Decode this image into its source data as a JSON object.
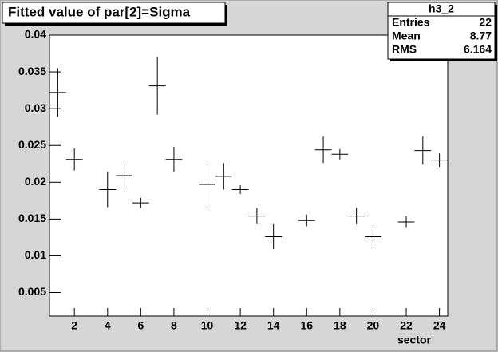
{
  "chart_data": {
    "type": "errorbar",
    "title": "Fitted value of par[2]=Sigma",
    "x_label": "sector",
    "x": [
      1,
      2,
      3,
      4,
      5,
      6,
      7,
      8,
      9,
      10,
      11,
      12,
      13,
      14,
      15,
      16,
      17,
      18,
      19,
      20,
      21,
      22,
      23,
      24
    ],
    "values": [
      0.0322,
      0.0231,
      null,
      0.019,
      0.0209,
      0.0172,
      0.0331,
      0.0231,
      null,
      0.0197,
      0.0208,
      0.019,
      0.0154,
      0.0126,
      null,
      0.0148,
      0.0244,
      0.0238,
      0.0154,
      0.0126,
      null,
      0.0146,
      0.0243,
      0.023
    ],
    "errors": [
      0.0033,
      0.0015,
      null,
      0.0024,
      0.0015,
      0.0007,
      0.0039,
      0.0017,
      null,
      0.0028,
      0.0018,
      0.0006,
      0.0011,
      0.0017,
      null,
      0.0008,
      0.0018,
      0.0007,
      0.0011,
      0.0016,
      null,
      0.0008,
      0.0019,
      0.0009
    ],
    "color": "#000000",
    "xlim": [
      0.5,
      24.5
    ],
    "xticks": [
      2,
      4,
      6,
      8,
      10,
      12,
      14,
      16,
      18,
      20,
      22,
      24
    ],
    "ylim": [
      0.0018,
      0.04
    ],
    "yticks": [
      0.005,
      0.01,
      0.015,
      0.02,
      0.025,
      0.03,
      0.035,
      0.04
    ],
    "stats": {
      "name": "h3_2",
      "rows": [
        {
          "label": "Entries",
          "value": 22
        },
        {
          "label": "Mean",
          "value": 8.77
        },
        {
          "label": "RMS",
          "value": 6.164
        }
      ]
    }
  }
}
